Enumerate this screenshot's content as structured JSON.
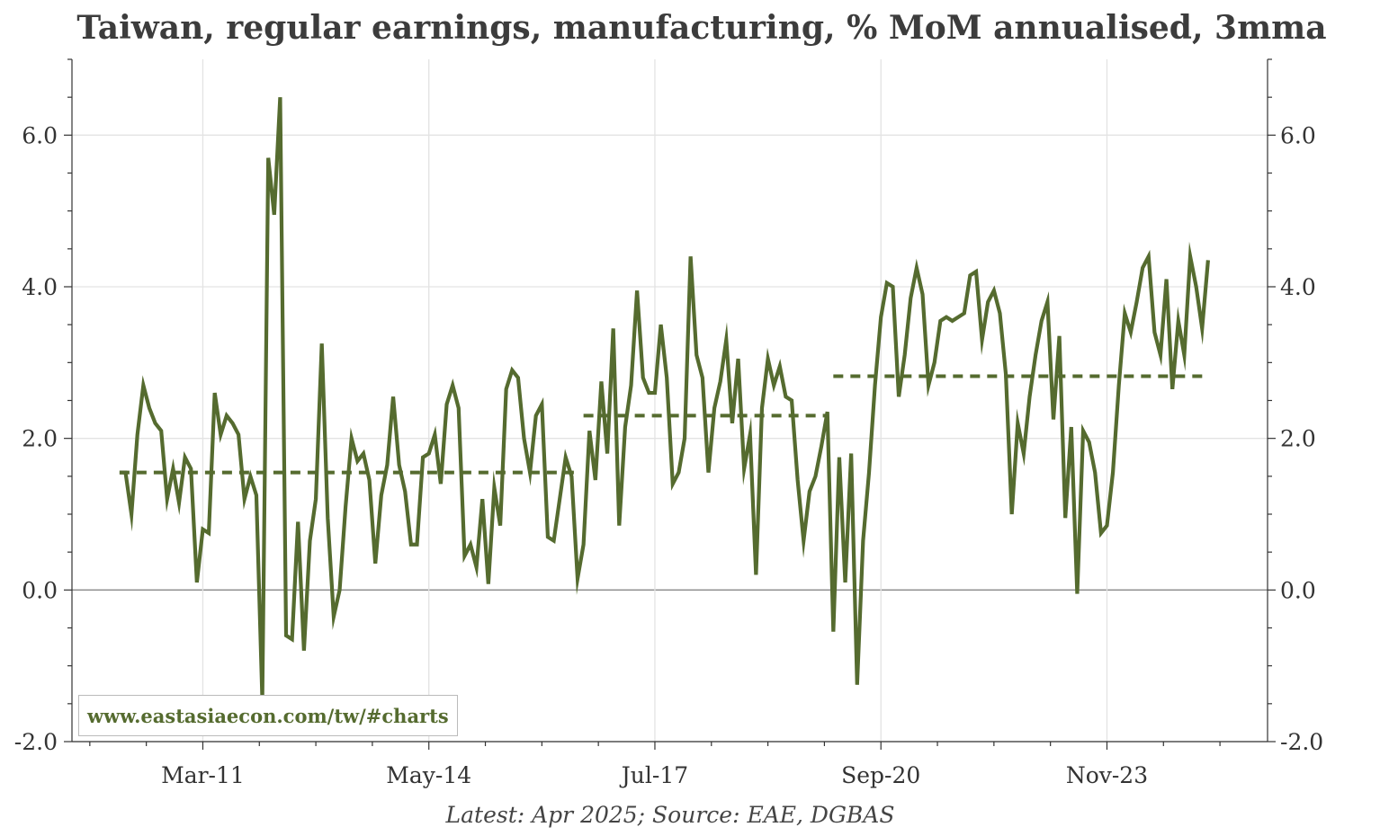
{
  "title": "Taiwan, regular earnings, manufacturing, % MoM annualised, 3mma",
  "source": "Latest: Apr 2025; Source: EAE, DGBAS",
  "watermark": "www.eastasiaecon.com/tw/#charts",
  "colors": {
    "line": "#556b2f",
    "grid": "#e3e3e3",
    "zero": "#888888",
    "axis": "#333333"
  },
  "chart_data": {
    "type": "line",
    "title": "Taiwan, regular earnings, manufacturing, % MoM annualised, 3mma",
    "xlabel": "",
    "ylabel": "",
    "ylim": [
      -2.0,
      7.0
    ],
    "y_ticks": [
      -2.0,
      0.0,
      2.0,
      4.0,
      6.0
    ],
    "y_tick_labels": [
      "-2.0",
      "0.0",
      "2.0",
      "4.0",
      "6.0"
    ],
    "x_ticks": [
      "2011-03",
      "2014-05",
      "2017-07",
      "2020-09",
      "2023-11"
    ],
    "x_tick_labels": [
      "Mar-11",
      "May-14",
      "Jul-17",
      "Sep-20",
      "Nov-23"
    ],
    "xlim": [
      "2009-05",
      "2026-02"
    ],
    "grid": true,
    "series": [
      {
        "type": "line",
        "start": "2010-01",
        "frequency": "monthly",
        "end": "2025-04",
        "values": [
          1.55,
          1.55,
          1.0,
          2.05,
          2.7,
          2.4,
          2.2,
          2.1,
          1.2,
          1.6,
          1.15,
          1.75,
          1.6,
          0.1,
          0.8,
          0.75,
          2.6,
          2.05,
          2.3,
          2.2,
          2.05,
          1.2,
          1.5,
          1.25,
          -1.45,
          5.7,
          4.95,
          6.5,
          -0.6,
          -0.65,
          0.9,
          -0.8,
          0.65,
          1.2,
          3.25,
          0.95,
          -0.35,
          0.0,
          1.1,
          2.0,
          1.7,
          1.8,
          1.45,
          0.35,
          1.25,
          1.65,
          2.55,
          1.65,
          1.3,
          0.6,
          0.6,
          1.75,
          1.8,
          2.05,
          1.4,
          2.45,
          2.7,
          2.4,
          0.45,
          0.6,
          0.3,
          1.2,
          0.08,
          1.35,
          0.85,
          2.65,
          2.9,
          2.8,
          2.0,
          1.55,
          2.3,
          2.45,
          0.7,
          0.65,
          1.2,
          1.75,
          1.5,
          0.15,
          0.6,
          2.1,
          1.45,
          2.75,
          1.8,
          3.45,
          0.85,
          2.15,
          2.7,
          3.95,
          2.8,
          2.6,
          2.6,
          3.5,
          2.8,
          1.4,
          1.55,
          2.0,
          4.4,
          3.1,
          2.8,
          1.55,
          2.4,
          2.75,
          3.3,
          2.2,
          3.05,
          1.6,
          2.05,
          0.2,
          2.4,
          3.05,
          2.7,
          2.95,
          2.55,
          2.5,
          1.45,
          0.65,
          1.3,
          1.5,
          1.9,
          2.35,
          -0.55,
          1.75,
          0.1,
          1.8,
          -1.25,
          0.65,
          1.55,
          2.7,
          3.6,
          4.05,
          4.0,
          2.55,
          3.1,
          3.85,
          4.25,
          3.9,
          2.7,
          3.0,
          3.55,
          3.6,
          3.55,
          3.6,
          3.65,
          4.15,
          4.2,
          3.3,
          3.8,
          3.95,
          3.65,
          2.85,
          1.0,
          2.2,
          1.8,
          2.55,
          3.1,
          3.55,
          3.8,
          2.25,
          3.35,
          0.95,
          2.15,
          -0.05,
          2.1,
          1.95,
          1.55,
          0.75,
          0.85,
          1.55,
          2.7,
          3.65,
          3.4,
          3.8,
          4.25,
          4.4,
          3.4,
          3.1,
          4.1,
          2.65,
          3.55,
          3.1,
          4.4,
          4.0,
          3.45,
          4.35
        ]
      },
      {
        "type": "step-average",
        "style": "dashed",
        "segments": [
          {
            "from": "2010-01",
            "to": "2016-06",
            "value": 1.55
          },
          {
            "from": "2016-07",
            "to": "2019-12",
            "value": 2.3
          },
          {
            "from": "2020-01",
            "to": "2025-04",
            "value": 2.82
          }
        ]
      }
    ]
  }
}
